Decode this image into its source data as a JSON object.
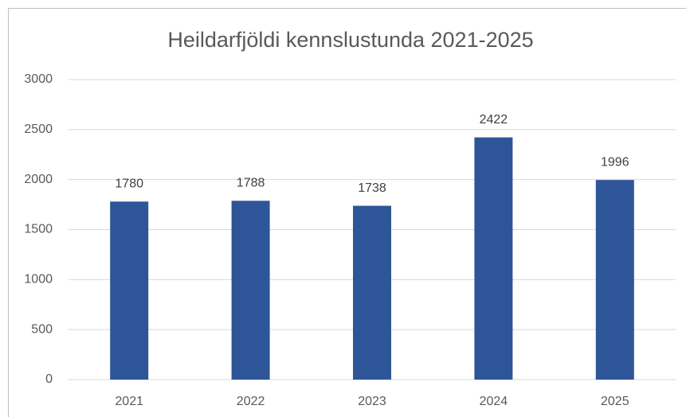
{
  "chart_data": {
    "type": "bar",
    "title": "Heildarfjöldi kennslustunda 2021-2025",
    "categories": [
      "2021",
      "2022",
      "2023",
      "2024",
      "2025"
    ],
    "values": [
      1780,
      1788,
      1738,
      2422,
      1996
    ],
    "color": "#2e5597",
    "ylim": [
      0,
      3000
    ],
    "yticks": [
      0,
      500,
      1000,
      1500,
      2000,
      2500,
      3000
    ],
    "grid": true
  }
}
